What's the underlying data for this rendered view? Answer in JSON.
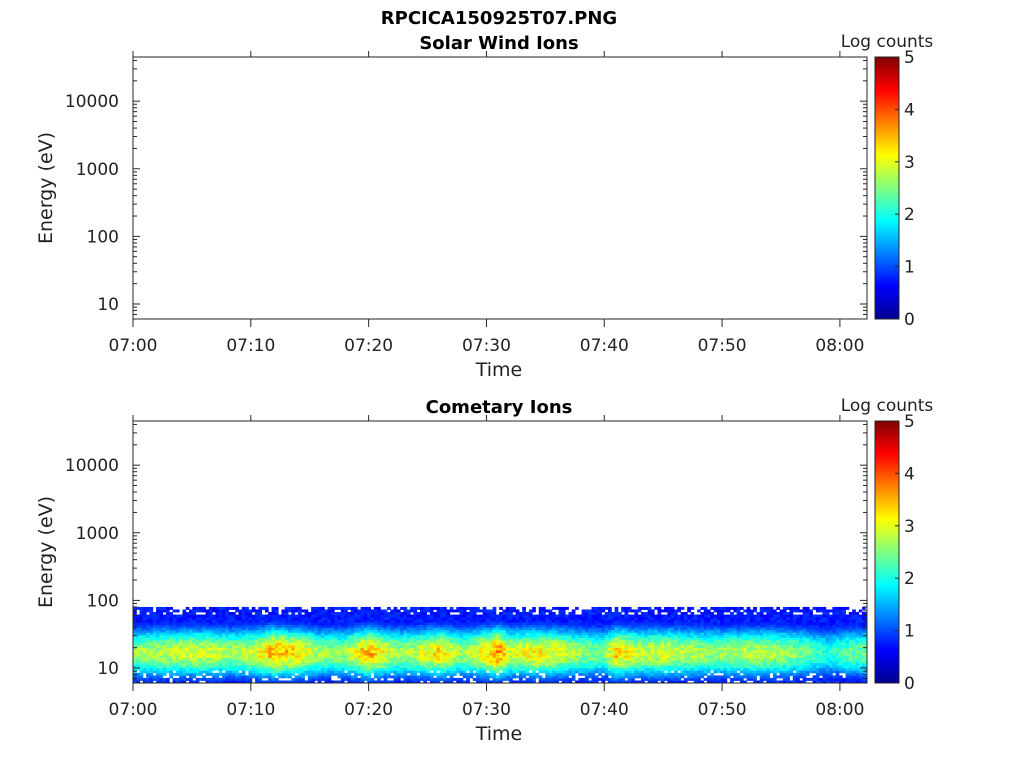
{
  "figure_title": "RPCICA150925T07.PNG",
  "colors": {
    "axis": "#262626",
    "background": "#ffffff"
  },
  "chart_data": [
    {
      "type": "heatmap",
      "title": "Solar Wind Ions",
      "xlabel": "Time",
      "ylabel": "Energy (eV)",
      "x_tick_labels": [
        "07:00",
        "07:10",
        "07:20",
        "07:30",
        "07:40",
        "07:50",
        "08:00"
      ],
      "x_range_minutes": [
        0,
        62.3
      ],
      "y_scale": "log",
      "y_tick_labels": [
        "10",
        "100",
        "1000",
        "10000"
      ],
      "y_tick_values": [
        10,
        100,
        1000,
        10000
      ],
      "ylim": [
        6,
        45000
      ],
      "colorbar": {
        "label": "Log counts",
        "ticks": [
          "0",
          "1",
          "2",
          "3",
          "4",
          "5"
        ],
        "range": [
          0,
          5
        ],
        "colormap": "jet"
      },
      "data_present": false
    },
    {
      "type": "heatmap",
      "title": "Cometary Ions",
      "xlabel": "Time",
      "ylabel": "Energy (eV)",
      "x_tick_labels": [
        "07:00",
        "07:10",
        "07:20",
        "07:30",
        "07:40",
        "07:50",
        "08:00"
      ],
      "x_range_minutes": [
        0,
        62.3
      ],
      "y_scale": "log",
      "y_tick_labels": [
        "10",
        "100",
        "1000",
        "10000"
      ],
      "y_tick_values": [
        10,
        100,
        1000,
        10000
      ],
      "ylim": [
        6,
        45000
      ],
      "colorbar": {
        "label": "Log counts",
        "ticks": [
          "0",
          "1",
          "2",
          "3",
          "4",
          "5"
        ],
        "range": [
          0,
          5
        ],
        "colormap": "jet"
      },
      "data_present": true,
      "energy_coverage_eV": [
        6,
        80
      ],
      "peak_energy_eV": 17,
      "peak_log_counts": [
        {
          "minute": 0,
          "value": 2.6
        },
        {
          "minute": 2,
          "value": 2.8
        },
        {
          "minute": 4,
          "value": 2.9
        },
        {
          "minute": 6,
          "value": 2.9
        },
        {
          "minute": 8,
          "value": 2.7
        },
        {
          "minute": 10,
          "value": 2.8
        },
        {
          "minute": 12,
          "value": 3.6
        },
        {
          "minute": 14,
          "value": 3.2
        },
        {
          "minute": 16,
          "value": 2.6
        },
        {
          "minute": 18,
          "value": 2.6
        },
        {
          "minute": 20,
          "value": 3.6
        },
        {
          "minute": 22,
          "value": 2.7
        },
        {
          "minute": 24,
          "value": 2.8
        },
        {
          "minute": 26,
          "value": 3.3
        },
        {
          "minute": 28,
          "value": 2.6
        },
        {
          "minute": 30,
          "value": 3.2
        },
        {
          "minute": 31,
          "value": 3.8
        },
        {
          "minute": 32,
          "value": 2.9
        },
        {
          "minute": 34,
          "value": 3.2
        },
        {
          "minute": 36,
          "value": 3.0
        },
        {
          "minute": 38,
          "value": 2.6
        },
        {
          "minute": 40,
          "value": 2.4
        },
        {
          "minute": 41,
          "value": 3.4
        },
        {
          "minute": 43,
          "value": 2.8
        },
        {
          "minute": 45,
          "value": 3.0
        },
        {
          "minute": 47,
          "value": 2.8
        },
        {
          "minute": 49,
          "value": 2.6
        },
        {
          "minute": 51,
          "value": 2.7
        },
        {
          "minute": 53,
          "value": 2.8
        },
        {
          "minute": 55,
          "value": 2.7
        },
        {
          "minute": 57,
          "value": 2.4
        },
        {
          "minute": 59,
          "value": 2.0
        },
        {
          "minute": 61,
          "value": 2.4
        }
      ]
    }
  ]
}
